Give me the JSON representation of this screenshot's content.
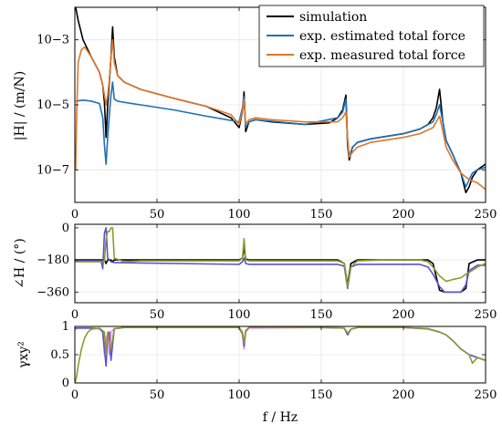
{
  "chart_data": [
    {
      "type": "line",
      "panel": "magnitude",
      "ylabel": "|H| / (m/N)",
      "yscale": "log",
      "xlim": [
        0,
        250
      ],
      "ylim": [
        1e-08,
        0.01
      ],
      "xticks": [
        0,
        50,
        100,
        150,
        200,
        250
      ],
      "xtick_labels": [
        "0",
        "50",
        "100",
        "150",
        "200",
        "250"
      ],
      "yticks": [
        1e-07,
        1e-05,
        0.001
      ],
      "ytick_labels": [
        "10−7",
        "10−5",
        "10−3"
      ],
      "grid": true,
      "legend_placement": "top-right",
      "series": [
        {
          "name": "simulation",
          "color": "#000000",
          "x": [
            0.5,
            2,
            5,
            10,
            15,
            17,
            18,
            19,
            20,
            21,
            22,
            23,
            24,
            26,
            30,
            40,
            60,
            80,
            95,
            100,
            102,
            103,
            104,
            106,
            110,
            120,
            140,
            155,
            160,
            163,
            165,
            166,
            167,
            169,
            172,
            180,
            200,
            210,
            215,
            218,
            220,
            222,
            224,
            226,
            230,
            235,
            238,
            240,
            242,
            245,
            250
          ],
          "y": [
            0.01,
            0.004,
            0.001,
            0.0003,
            0.0001,
            4e-05,
            1.2e-05,
            1e-06,
            1e-05,
            5e-05,
            0.0003,
            0.0025,
            0.0003,
            8e-05,
            5e-05,
            3e-05,
            1.6e-05,
            9e-06,
            4e-06,
            2e-06,
            6e-06,
            2.5e-05,
            1.5e-06,
            3e-06,
            3.5e-06,
            3e-06,
            2.5e-06,
            2.8e-06,
            4e-06,
            7e-06,
            2e-05,
            6e-07,
            2e-07,
            5e-07,
            7e-07,
            9e-07,
            1.3e-06,
            1.8e-06,
            2.5e-06,
            4e-06,
            8e-06,
            3e-05,
            3e-06,
            8e-07,
            3e-07,
            8e-08,
            2e-08,
            3e-08,
            6e-08,
            1e-07,
            1.5e-07
          ]
        },
        {
          "name": "exp. estimated total force",
          "color": "#1f6fb8",
          "x": [
            0.5,
            5,
            10,
            15,
            17,
            18,
            19,
            20,
            21,
            22,
            23,
            24,
            26,
            30,
            40,
            60,
            80,
            100,
            102,
            103,
            104,
            106,
            110,
            140,
            160,
            163,
            165,
            166,
            167,
            169,
            172,
            180,
            200,
            210,
            218,
            220,
            222,
            224,
            226,
            230,
            235,
            238,
            240,
            242,
            245,
            250
          ],
          "y": [
            1.3e-05,
            1.4e-05,
            1.3e-05,
            1.1e-05,
            4e-06,
            6e-07,
            1.5e-07,
            1e-06,
            5e-06,
            2e-05,
            5e-05,
            1.5e-05,
            1.3e-05,
            1.2e-05,
            1e-05,
            7e-06,
            4.5e-06,
            3e-06,
            8e-06,
            1.8e-05,
            2e-06,
            3e-06,
            3.5e-06,
            2.5e-06,
            4e-06,
            6e-06,
            1.5e-05,
            8e-07,
            2.5e-07,
            5e-07,
            7e-07,
            9e-07,
            1.3e-06,
            1.8e-06,
            3e-06,
            5e-06,
            1e-05,
            3e-06,
            8e-07,
            3e-07,
            8e-08,
            3e-08,
            5e-08,
            8e-08,
            1e-07,
            1.2e-07
          ]
        },
        {
          "name": "exp. measured total force",
          "color": "#e0762a",
          "x": [
            0.5,
            1,
            2,
            4,
            6,
            10,
            15,
            17,
            18,
            19,
            20,
            21,
            22,
            23,
            24,
            26,
            30,
            40,
            60,
            80,
            95,
            100,
            102,
            103,
            104,
            106,
            110,
            120,
            140,
            160,
            163,
            165,
            166,
            167,
            169,
            172,
            180,
            200,
            210,
            218,
            220,
            222,
            224,
            226,
            230,
            235,
            240,
            245,
            250
          ],
          "y": [
            1e-07,
            3e-06,
            0.0002,
            0.0005,
            0.0006,
            0.0003,
            0.0001,
            4e-05,
            2e-05,
            1e-05,
            2e-05,
            6e-05,
            0.0003,
            0.001,
            0.0002,
            8e-05,
            5e-05,
            3e-05,
            1.6e-05,
            9e-06,
            5e-06,
            2.5e-06,
            6e-06,
            1.5e-05,
            2.5e-06,
            3.5e-06,
            4e-06,
            3.5e-06,
            3e-06,
            3e-06,
            4e-06,
            6e-06,
            1e-06,
            2.5e-07,
            3.5e-07,
            5e-07,
            7e-07,
            1e-06,
            1.3e-06,
            2e-06,
            3e-06,
            4.5e-06,
            1.5e-06,
            5e-07,
            2e-07,
            8e-08,
            5e-08,
            4e-08,
            2.5e-08
          ]
        }
      ]
    },
    {
      "type": "line",
      "panel": "phase",
      "ylabel": "∠H / (°)",
      "xlim": [
        0,
        250
      ],
      "ylim": [
        -420,
        20
      ],
      "xticks": [
        0,
        50,
        100,
        150,
        200,
        250
      ],
      "xtick_labels": [
        "0",
        "50",
        "100",
        "150",
        "200",
        "250"
      ],
      "yticks": [
        0,
        -180,
        -360
      ],
      "ytick_labels": [
        "0",
        "−180",
        "−360"
      ],
      "grid": true,
      "series": [
        {
          "color": "#000000",
          "x": [
            0,
            18,
            19,
            20,
            22,
            23,
            24,
            100,
            102,
            103,
            104,
            106,
            160,
            164,
            166,
            168,
            172,
            215,
            218,
            222,
            225,
            235,
            238,
            240,
            245,
            250
          ],
          "y": [
            -180,
            -180,
            -200,
            -180,
            -180,
            -190,
            -180,
            -180,
            -170,
            -110,
            -175,
            -180,
            -180,
            -200,
            -320,
            -200,
            -180,
            -180,
            -200,
            -350,
            -360,
            -360,
            -340,
            -200,
            -180,
            -180
          ]
        },
        {
          "color": "#5555d0",
          "x": [
            0,
            16,
            17,
            18,
            19,
            20,
            22,
            24,
            100,
            102,
            103,
            104,
            106,
            160,
            164,
            166,
            168,
            172,
            210,
            215,
            218,
            222,
            225,
            235,
            238,
            240,
            245,
            250
          ],
          "y": [
            -185,
            -185,
            -230,
            -30,
            0,
            -170,
            -190,
            -195,
            -205,
            -190,
            -170,
            -200,
            -205,
            -205,
            -215,
            -340,
            -220,
            -205,
            -205,
            -220,
            -260,
            -330,
            -360,
            -360,
            -320,
            -240,
            -210,
            -210
          ]
        },
        {
          "color": "#8d9a2e",
          "x": [
            0,
            18,
            19,
            20,
            21,
            22,
            23,
            24,
            30,
            40,
            100,
            102,
            103,
            104,
            106,
            160,
            164,
            166,
            168,
            172,
            190,
            210,
            215,
            218,
            222,
            226,
            230,
            235,
            238,
            240,
            245,
            250
          ],
          "y": [
            -190,
            -190,
            -60,
            -20,
            -20,
            0,
            0,
            -170,
            -190,
            -185,
            -185,
            -170,
            -60,
            -180,
            -185,
            -185,
            -200,
            -330,
            -220,
            -185,
            -180,
            -180,
            -190,
            -220,
            -270,
            -300,
            -290,
            -280,
            -260,
            -250,
            -220,
            -200
          ]
        }
      ]
    },
    {
      "type": "line",
      "panel": "coherence",
      "ylabel": "γxy²",
      "xlabel": "f / Hz",
      "xlim": [
        0,
        250
      ],
      "ylim": [
        0,
        1
      ],
      "xticks": [
        0,
        50,
        100,
        150,
        200,
        250
      ],
      "xtick_labels": [
        "0",
        "50",
        "100",
        "150",
        "200",
        "250"
      ],
      "yticks": [
        0,
        0.5,
        1
      ],
      "ytick_labels": [
        "0",
        "0.5",
        "1"
      ],
      "grid": true,
      "series": [
        {
          "color": "#ff80ff",
          "x": [
            0,
            2,
            4,
            10,
            15,
            17,
            18,
            19,
            20,
            21,
            22,
            24,
            30,
            100,
            102,
            103,
            104,
            106,
            150,
            164,
            166,
            168,
            172,
            200,
            215,
            222,
            226,
            230,
            235,
            240,
            245,
            250
          ],
          "y": [
            0.95,
            0.97,
            0.97,
            0.97,
            0.96,
            0.9,
            0.5,
            0.8,
            0.85,
            0.5,
            0.9,
            0.96,
            0.98,
            0.98,
            0.85,
            0.6,
            0.9,
            0.97,
            0.98,
            0.97,
            0.85,
            0.95,
            0.98,
            0.98,
            0.95,
            0.9,
            0.85,
            0.75,
            0.6,
            0.5,
            0.45,
            0.4
          ]
        },
        {
          "color": "#5555d0",
          "x": [
            0,
            3,
            8,
            15,
            17,
            18,
            19,
            20,
            21,
            22,
            24,
            30,
            100,
            102,
            103,
            104,
            106,
            150,
            164,
            166,
            168,
            172,
            200,
            215,
            222,
            226,
            230,
            235,
            240,
            245,
            250
          ],
          "y": [
            0.97,
            0.97,
            0.97,
            0.96,
            0.9,
            0.6,
            0.3,
            0.85,
            0.9,
            0.4,
            0.96,
            0.98,
            0.98,
            0.88,
            0.65,
            0.92,
            0.98,
            0.98,
            0.97,
            0.85,
            0.95,
            0.98,
            0.98,
            0.96,
            0.9,
            0.85,
            0.75,
            0.6,
            0.5,
            0.45,
            0.4
          ]
        },
        {
          "color": "#8d9a2e",
          "x": [
            0,
            1,
            2,
            4,
            6,
            8,
            10,
            15,
            18,
            19,
            20,
            22,
            24,
            30,
            100,
            102,
            103,
            104,
            106,
            150,
            164,
            166,
            168,
            172,
            200,
            215,
            222,
            226,
            230,
            235,
            240,
            242,
            245,
            250
          ],
          "y": [
            0,
            0.1,
            0.3,
            0.6,
            0.8,
            0.9,
            0.95,
            0.97,
            0.9,
            0.5,
            0.9,
            0.6,
            0.96,
            0.98,
            0.98,
            0.9,
            0.7,
            0.93,
            0.98,
            0.98,
            0.97,
            0.88,
            0.95,
            0.98,
            0.98,
            0.96,
            0.9,
            0.85,
            0.75,
            0.6,
            0.5,
            0.35,
            0.45,
            0.4
          ]
        }
      ]
    }
  ]
}
